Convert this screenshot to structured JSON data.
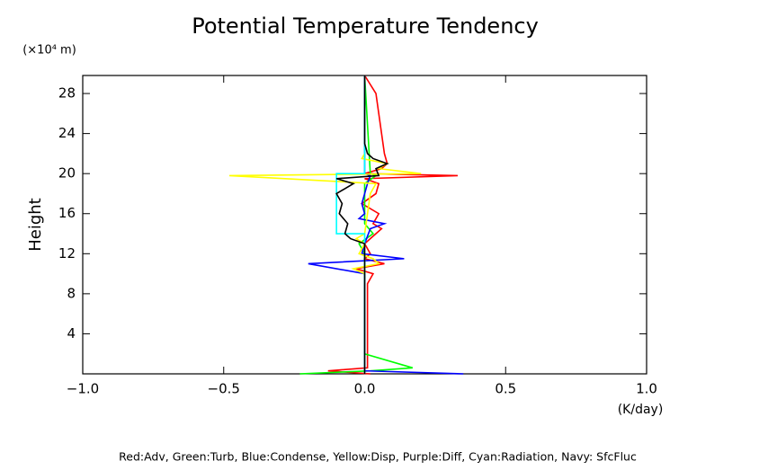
{
  "chart_data": {
    "type": "profile",
    "title": "Potential Temperature Tendency",
    "ylabel": "Height",
    "yunit": "(×10⁴ m)",
    "xunit": "(K/day)",
    "note": "Red:Adv, Green:Turb, Blue:Condense, Yellow:Disp, Purple:Diff, Cyan:Radiation, Navy: SfcFluc",
    "xlim": [
      -1,
      1
    ],
    "ylim": [
      0,
      29.8
    ],
    "xticks": [
      {
        "value": -1,
        "label": "−1.0"
      },
      {
        "value": -0.5,
        "label": "−0.5"
      },
      {
        "value": 0,
        "label": "0.0"
      },
      {
        "value": 0.5,
        "label": "0.5"
      },
      {
        "value": 1,
        "label": "1.0"
      }
    ],
    "yticks": [
      4,
      8,
      12,
      16,
      20,
      24,
      28
    ],
    "series": [
      {
        "color": "#ff0000",
        "heights": [
          0,
          0.3,
          0.6,
          2,
          9,
          10,
          10.5,
          11,
          11.5,
          12,
          13,
          14,
          14.5,
          15,
          16,
          17,
          18,
          19,
          19.5,
          19.8,
          20,
          20.5,
          21,
          22,
          24,
          26,
          28,
          29.8
        ],
        "values": [
          0.02,
          -0.13,
          0.01,
          0.01,
          0.01,
          0.03,
          -0.03,
          0.07,
          0.0,
          0.02,
          0.0,
          0.04,
          0.06,
          0.03,
          0.05,
          -0.01,
          0.04,
          0.05,
          0.0,
          0.33,
          0.0,
          0.06,
          0.08,
          0.07,
          0.06,
          0.05,
          0.04,
          0.0
        ]
      },
      {
        "color": "#00ff00",
        "heights": [
          0,
          0.3,
          0.6,
          2,
          12,
          13,
          14,
          15,
          19,
          19.8,
          20,
          29.8
        ],
        "values": [
          -0.23,
          0.02,
          0.17,
          0.0,
          0.0,
          -0.02,
          0.03,
          0.0,
          0.0,
          0.04,
          0.02,
          0.0
        ]
      },
      {
        "color": "#0000ff",
        "heights": [
          0,
          0.3,
          2,
          10,
          11,
          11.5,
          12,
          13,
          14.5,
          15,
          15.5,
          16,
          17,
          18,
          19,
          19.8,
          20,
          29.8
        ],
        "values": [
          0.35,
          0.0,
          0.0,
          0.0,
          -0.2,
          0.14,
          -0.01,
          0.0,
          0.02,
          0.07,
          -0.02,
          0.0,
          -0.01,
          0.0,
          0.01,
          0.02,
          0.0,
          0.0
        ]
      },
      {
        "color": "#ffff00",
        "heights": [
          10,
          10.5,
          11,
          11.5,
          12,
          13,
          13.5,
          14,
          18,
          19,
          19.8,
          20,
          20.5,
          21,
          21.5,
          22
        ],
        "values": [
          0.0,
          -0.04,
          0.05,
          0.03,
          -0.02,
          0.0,
          -0.03,
          0.0,
          0.02,
          0.04,
          -0.48,
          0.2,
          0.05,
          0.08,
          -0.01,
          0.0
        ]
      },
      {
        "color": "#00ffff",
        "heights": [
          0,
          14,
          14,
          20,
          20,
          29.8
        ],
        "values": [
          0,
          0,
          -0.1,
          -0.1,
          0,
          0
        ]
      },
      {
        "color": "#000000",
        "heights": [
          0,
          13,
          13.5,
          14,
          15,
          16,
          17,
          18,
          18.5,
          19,
          19.5,
          19.8,
          20.5,
          21,
          21.5,
          22,
          23,
          29.8
        ],
        "values": [
          0,
          0,
          -0.05,
          -0.07,
          -0.06,
          -0.09,
          -0.08,
          -0.1,
          -0.07,
          -0.04,
          -0.1,
          0.05,
          0.04,
          0.08,
          0.03,
          0.01,
          0.0,
          0.0
        ]
      }
    ]
  }
}
